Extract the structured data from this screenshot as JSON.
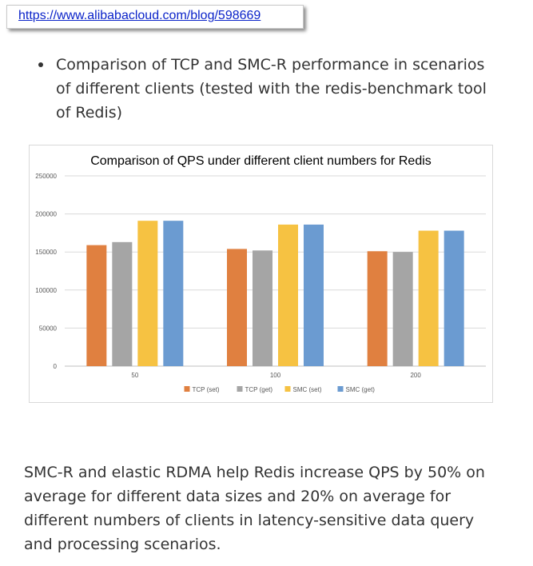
{
  "url_box": {
    "url": "https://www.alibabacloud.com/blog/598669"
  },
  "bullet": {
    "text": "Comparison of TCP and SMC-R performance in scenarios of different clients (tested with the redis-benchmark tool of Redis)"
  },
  "paragraph": {
    "text": "SMC-R and elastic RDMA help Redis increase QPS by 50% on average for different data sizes and 20% on average for different numbers of clients in latency-sensitive data query and processing scenarios."
  },
  "chart_data": {
    "type": "bar",
    "title": "Comparison of QPS under different client numbers for Redis",
    "categories": [
      "50",
      "100",
      "200"
    ],
    "series": [
      {
        "name": "TCP (set)",
        "color": "#e08040",
        "values": [
          159000,
          154000,
          151000
        ]
      },
      {
        "name": "TCP (get)",
        "color": "#a5a5a5",
        "values": [
          163000,
          152000,
          150000
        ]
      },
      {
        "name": "SMC (set)",
        "color": "#f6c242",
        "values": [
          191000,
          186000,
          178000
        ]
      },
      {
        "name": "SMC (get)",
        "color": "#6b9bd1",
        "values": [
          191000,
          186000,
          178000
        ]
      }
    ],
    "yticks": [
      "0",
      "50000",
      "100000",
      "150000",
      "200000",
      "250000"
    ],
    "ylim": [
      0,
      250000
    ],
    "grid": true,
    "legend_position": "bottom"
  }
}
